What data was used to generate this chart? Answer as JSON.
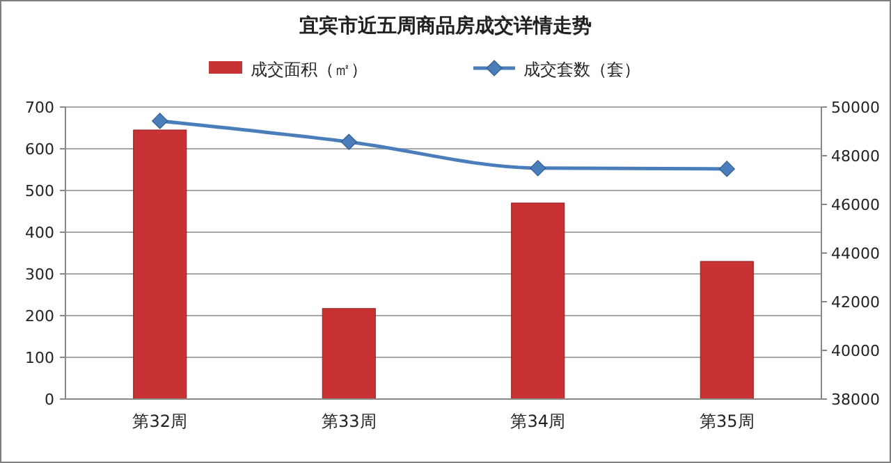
{
  "chart_data": {
    "type": "bar",
    "title": "宜宾市近五周商品房成交详情走势",
    "categories": [
      "第32周",
      "第33周",
      "第34周",
      "第35周"
    ],
    "series": [
      {
        "name": "成交面积（㎡）",
        "color": "#c83232",
        "values": [
          645,
          217,
          470,
          330
        ]
      },
      {
        "name": "成交套数（套）",
        "type": "line",
        "axis": "y2",
        "color": "#4a7ebb",
        "values": [
          49430,
          48570,
          47490,
          47460
        ],
        "marker": "diamond"
      }
    ],
    "ylim": [
      0,
      700
    ],
    "yticks": [
      0,
      100,
      200,
      300,
      400,
      500,
      600,
      700
    ],
    "y2lim": [
      38000,
      50000
    ],
    "y2ticks": [
      38000,
      40000,
      42000,
      44000,
      46000,
      48000,
      50000
    ],
    "grid": "y",
    "legend": "top"
  }
}
